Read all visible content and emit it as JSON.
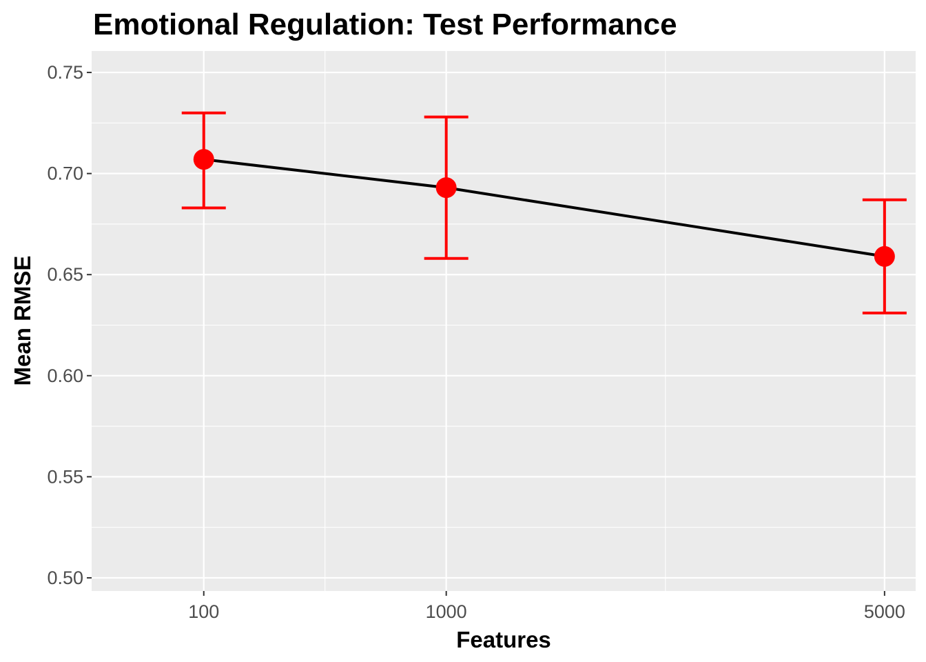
{
  "chart_data": {
    "type": "line",
    "title": "Emotional Regulation: Test Performance",
    "xlabel": "Features",
    "ylabel": "Mean RMSE",
    "x_scale": "sqrt",
    "xlim": [
      0,
      5400
    ],
    "ylim": [
      0.4935,
      0.7606
    ],
    "x_ticks": [
      100,
      1000,
      5000
    ],
    "x_tick_labels": [
      "100",
      "1000",
      "5000"
    ],
    "y_ticks": [
      0.5,
      0.55,
      0.6,
      0.65,
      0.7,
      0.75
    ],
    "y_tick_labels": [
      "0.50",
      "0.55",
      "0.60",
      "0.65",
      "0.70",
      "0.75"
    ],
    "grid": true,
    "series": [
      {
        "x": [
          100,
          1000,
          5000
        ],
        "y": [
          0.707,
          0.693,
          0.659
        ],
        "ymin": [
          0.683,
          0.658,
          0.631
        ],
        "ymax": [
          0.73,
          0.728,
          0.687
        ]
      }
    ],
    "colors": {
      "panel_background": "#ebebeb",
      "grid": "#ffffff",
      "line": "#000000",
      "points": "#ff0000",
      "error_bars": "#ff0000"
    }
  }
}
